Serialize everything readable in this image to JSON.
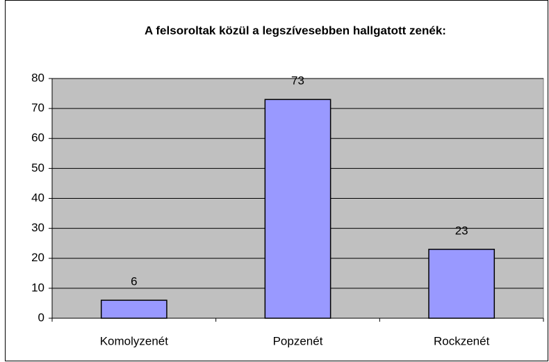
{
  "chart_data": {
    "type": "bar",
    "title": "A felsoroltak közül a legszívesebben hallgatott zenék:",
    "categories": [
      "Komolyzenét",
      "Popzenét",
      "Rockzenét"
    ],
    "values": [
      6,
      73,
      23
    ],
    "color": "#9999ff",
    "ylim": [
      0,
      80
    ],
    "yticks": [
      0,
      10,
      20,
      30,
      40,
      50,
      60,
      70,
      80
    ],
    "grid": true
  }
}
